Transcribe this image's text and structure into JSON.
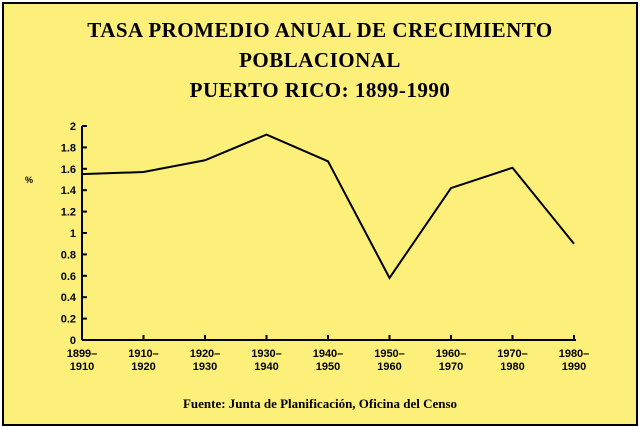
{
  "title_lines": [
    "TASA PROMEDIO ANUAL DE CRECIMIENTO",
    "POBLACIONAL",
    "PUERTO RICO: 1899-1990"
  ],
  "source": "Fuente: Junta de Planificación, Oficina del Censo",
  "colors": {
    "background": "#fdf07a",
    "line": "#000000",
    "text": "#000000"
  },
  "chart_data": {
    "type": "line",
    "title": "TASA PROMEDIO ANUAL DE CRECIMIENTO POBLACIONAL PUERTO RICO: 1899-1990",
    "ylabel": "%",
    "xlabel": "",
    "ylim": [
      0,
      2
    ],
    "yticks": [
      "0",
      "0.2",
      "0.4",
      "0.6",
      "0.8",
      "1",
      "1.2",
      "1.4",
      "1.6",
      "1.8",
      "2"
    ],
    "categories": [
      [
        "1899–",
        "1910"
      ],
      [
        "1910–",
        "1920"
      ],
      [
        "1920–",
        "1930"
      ],
      [
        "1930–",
        "1940"
      ],
      [
        "1940–",
        "1950"
      ],
      [
        "1950–",
        "1960"
      ],
      [
        "1960–",
        "1970"
      ],
      [
        "1970–",
        "1980"
      ],
      [
        "1980–",
        "1990"
      ]
    ],
    "series": [
      {
        "values": [
          1.55,
          1.57,
          1.68,
          1.92,
          1.67,
          0.58,
          1.42,
          1.61,
          0.9
        ]
      }
    ],
    "grid": false,
    "legend": "none"
  }
}
